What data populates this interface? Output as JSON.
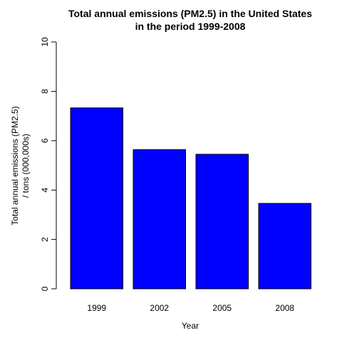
{
  "chart_data": {
    "type": "bar",
    "title_line1": "Total annual emissions (PM2.5) in the United States",
    "title_line2": "in the period 1999-2008",
    "xlabel": "Year",
    "ylabel_line1": "Total annual emissions (PM2.5)",
    "ylabel_line2": "/ tons (000,000s)",
    "categories": [
      "1999",
      "2002",
      "2005",
      "2008"
    ],
    "values": [
      7.33,
      5.64,
      5.45,
      3.46
    ],
    "ylim": [
      0,
      10
    ],
    "yticks": [
      0,
      2,
      4,
      6,
      8,
      10
    ],
    "bar_color": "#0000ff",
    "grid": false,
    "legend": "none"
  }
}
